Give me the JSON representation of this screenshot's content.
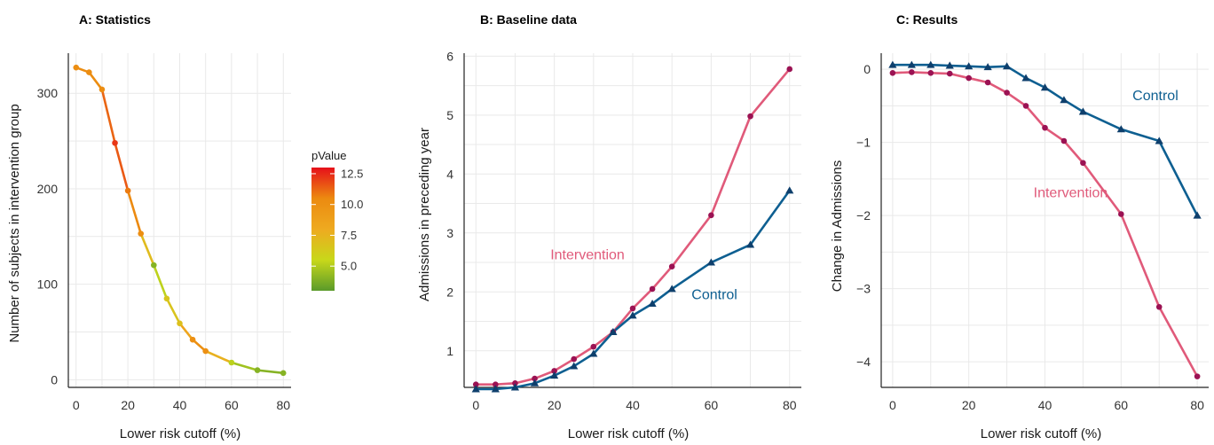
{
  "chart_data": [
    {
      "type": "line",
      "title": "A: Statistics",
      "xlabel": "Lower risk cutoff (%)",
      "ylabel": "Number of subjects in intervention group",
      "xlim": [
        -3,
        83
      ],
      "ylim": [
        -8,
        342
      ],
      "xticks": [
        0,
        20,
        40,
        60,
        80
      ],
      "yticks": [
        0,
        100,
        200,
        300
      ],
      "x": [
        0,
        5,
        10,
        15,
        20,
        25,
        30,
        35,
        40,
        45,
        50,
        60,
        70,
        80
      ],
      "series": [
        {
          "values": [
            327,
            322,
            304,
            248,
            198,
            153,
            120,
            85,
            59,
            42,
            30,
            18,
            10,
            7
          ],
          "pvalues": [
            10.2,
            10.3,
            10.3,
            12.2,
            10.8,
            10.2,
            4.0,
            6.5,
            6.8,
            10.0,
            10.0,
            5.2,
            4.0,
            4.0
          ]
        }
      ],
      "colorbar": {
        "title": "pValue",
        "min": 3.0,
        "max": 13.0,
        "ticks": [
          "12.5",
          "10.0",
          "7.5",
          "5.0"
        ],
        "tick_values": [
          12.5,
          10.0,
          7.5,
          5.0
        ],
        "colors": [
          "#5a9a2a",
          "#c8d81a",
          "#eeaa20",
          "#ec8a10",
          "#e6101a"
        ]
      }
    },
    {
      "type": "line",
      "title": "B: Baseline data",
      "xlabel": "Lower risk cutoff (%)",
      "ylabel": "Admissions in preceding year",
      "xlim": [
        -3,
        83
      ],
      "ylim": [
        0.38,
        6.05
      ],
      "xticks": [
        0,
        20,
        40,
        60,
        80
      ],
      "yticks": [
        1,
        2,
        3,
        4,
        5,
        6
      ],
      "x": [
        0,
        5,
        10,
        15,
        20,
        25,
        30,
        35,
        40,
        45,
        50,
        60,
        70,
        80
      ],
      "series": [
        {
          "name": "Intervention",
          "color": "#e05a7a",
          "marker_color": "#9b1253",
          "marker": "circle",
          "label_at": [
            19,
            2.55
          ],
          "values": [
            0.43,
            0.43,
            0.45,
            0.53,
            0.66,
            0.86,
            1.07,
            1.32,
            1.72,
            2.05,
            2.43,
            3.3,
            4.98,
            5.78
          ]
        },
        {
          "name": "Control",
          "color": "#0e5f91",
          "marker_color": "#0e3f6c",
          "marker": "triangle",
          "label_at": [
            55,
            1.88
          ],
          "values": [
            0.35,
            0.35,
            0.38,
            0.45,
            0.58,
            0.74,
            0.95,
            1.32,
            1.6,
            1.8,
            2.05,
            2.5,
            2.8,
            3.72
          ]
        }
      ]
    },
    {
      "type": "line",
      "title": "C: Results",
      "xlabel": "Lower risk cutoff (%)",
      "ylabel": "Change in Admissions",
      "xlim": [
        -3,
        83
      ],
      "ylim": [
        -4.35,
        0.22
      ],
      "xticks": [
        0,
        20,
        40,
        60,
        80
      ],
      "yticks": [
        0,
        -1,
        -2,
        -3,
        -4
      ],
      "ytick_labels": [
        "0",
        "−1",
        "−2",
        "−3",
        "−4"
      ],
      "x": [
        0,
        5,
        10,
        15,
        20,
        25,
        30,
        35,
        40,
        45,
        50,
        60,
        70,
        80
      ],
      "series": [
        {
          "name": "Intervention",
          "color": "#e05a7a",
          "marker_color": "#9b1253",
          "marker": "circle",
          "label_at": [
            37,
            -1.75
          ],
          "values": [
            -0.05,
            -0.04,
            -0.05,
            -0.06,
            -0.12,
            -0.18,
            -0.32,
            -0.5,
            -0.8,
            -0.98,
            -1.28,
            -1.98,
            -3.25,
            -4.2
          ]
        },
        {
          "name": "Control",
          "color": "#0e5f91",
          "marker_color": "#0e3f6c",
          "marker": "triangle",
          "label_at": [
            63,
            -0.42
          ],
          "values": [
            0.06,
            0.06,
            0.06,
            0.05,
            0.04,
            0.03,
            0.04,
            -0.12,
            -0.25,
            -0.42,
            -0.58,
            -0.82,
            -0.98,
            -2.0
          ]
        }
      ]
    }
  ]
}
